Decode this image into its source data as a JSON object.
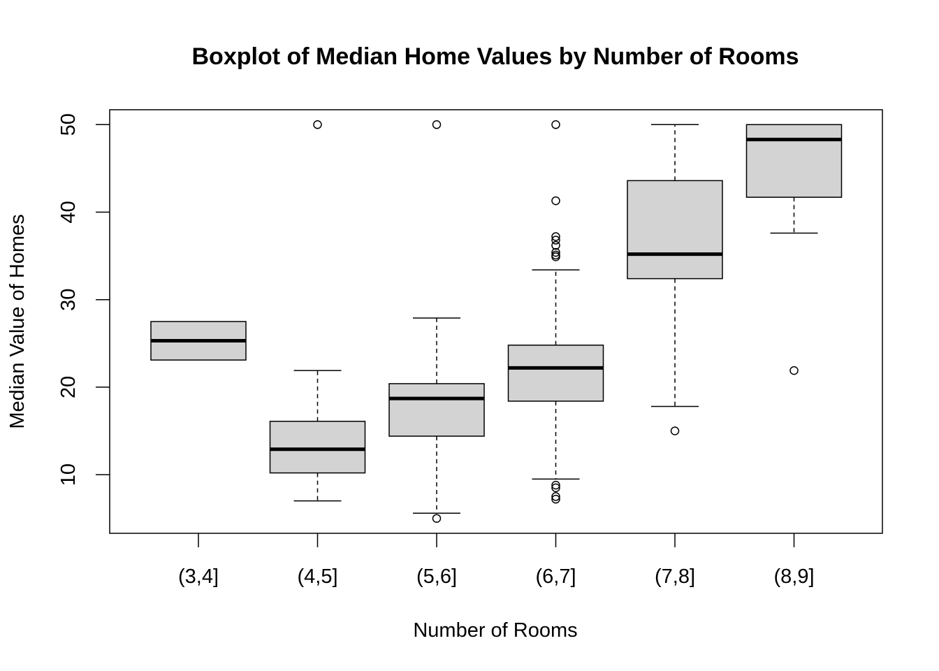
{
  "chart_data": {
    "type": "boxplot",
    "title": "Boxplot of Median Home Values by Number of Rooms",
    "xlabel": "Number of Rooms",
    "ylabel": "Median Value of Homes",
    "ylim": [
      3.3,
      51.7
    ],
    "yticks": [
      10,
      20,
      30,
      40,
      50
    ],
    "ytick_labels": [
      "10",
      "20",
      "30",
      "40",
      "50"
    ],
    "grid": false,
    "box_fill": "#d3d3d3",
    "line_color": "#000000",
    "categories": [
      "(3,4]",
      "(4,5]",
      "(5,6]",
      "(6,7]",
      "(7,8]",
      "(8,9]"
    ],
    "boxes": [
      {
        "category": "(3,4]",
        "whisker_low": 23.1,
        "q1": 23.1,
        "median": 25.3,
        "q3": 27.5,
        "whisker_high": 27.5,
        "outliers": []
      },
      {
        "category": "(4,5]",
        "whisker_low": 7.0,
        "q1": 10.2,
        "median": 12.9,
        "q3": 16.1,
        "whisker_high": 21.9,
        "outliers": [
          50.0
        ]
      },
      {
        "category": "(5,6]",
        "whisker_low": 5.6,
        "q1": 14.4,
        "median": 18.7,
        "q3": 20.4,
        "whisker_high": 27.9,
        "outliers": [
          50.0,
          5.0
        ]
      },
      {
        "category": "(6,7]",
        "whisker_low": 9.5,
        "q1": 18.4,
        "median": 22.2,
        "q3": 24.8,
        "whisker_high": 33.4,
        "outliers": [
          50.0,
          41.3,
          37.2,
          36.8,
          36.2,
          35.4,
          35.1,
          34.9,
          8.8,
          8.5,
          7.5,
          7.2
        ]
      },
      {
        "category": "(7,8]",
        "whisker_low": 17.8,
        "q1": 32.4,
        "median": 35.2,
        "q3": 43.6,
        "whisker_high": 50.0,
        "outliers": [
          15.0
        ]
      },
      {
        "category": "(8,9]",
        "whisker_low": 37.6,
        "q1": 41.7,
        "median": 48.3,
        "q3": 50.0,
        "whisker_high": 50.0,
        "outliers": [
          21.9
        ]
      }
    ]
  }
}
